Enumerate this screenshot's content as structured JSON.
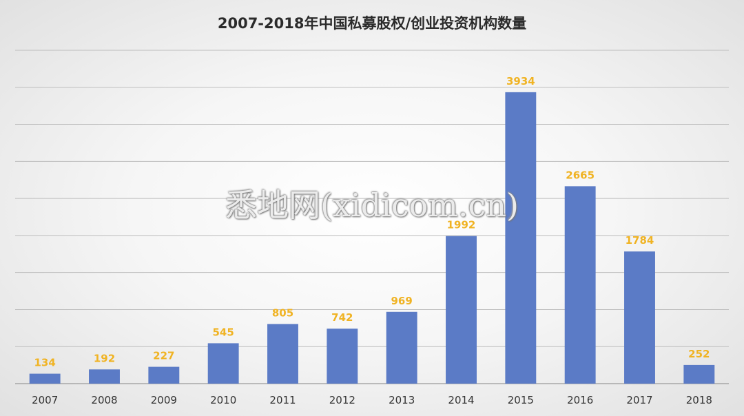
{
  "colors": {
    "bar": "#5b7bc6",
    "value_label": "#f0b323",
    "grid": "#bdbdbd",
    "axis_text": "#333333"
  },
  "watermark": "悉地网(xidicom.cn)",
  "chart_data": {
    "type": "bar",
    "title": "2007-2018年中国私募股权/创业投资机构数量",
    "xlabel": "",
    "ylabel": "",
    "categories": [
      "2007",
      "2008",
      "2009",
      "2010",
      "2011",
      "2012",
      "2013",
      "2014",
      "2015",
      "2016",
      "2017",
      "2018"
    ],
    "values": [
      134,
      192,
      227,
      545,
      805,
      742,
      969,
      1992,
      3934,
      2665,
      1784,
      252
    ],
    "value_labels": [
      "134",
      "192",
      "227",
      "545",
      "805",
      "742",
      "969",
      "1992",
      "3934",
      "2665",
      "1784",
      "252"
    ],
    "ylim": [
      0,
      4500
    ],
    "y_grid_step": 500,
    "grid": true,
    "y_tick_labels_shown": false,
    "legend": "none"
  }
}
